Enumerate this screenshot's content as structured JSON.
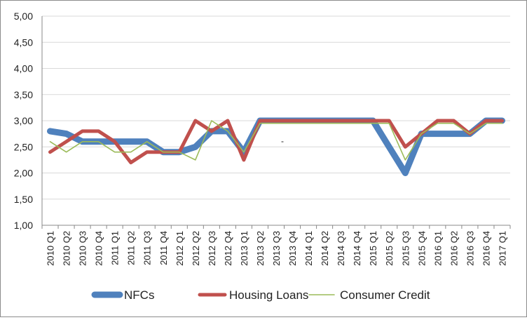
{
  "chart_data": {
    "type": "line",
    "categories": [
      "2010 Q1",
      "2010 Q2",
      "2010 Q3",
      "2010 Q4",
      "2011 Q1",
      "2011 Q2",
      "2011 Q3",
      "2011 Q4",
      "2012 Q1",
      "2012 Q2",
      "2012 Q3",
      "2012 Q4",
      "2013 Q1",
      "2013 Q2",
      "2013 Q3",
      "2013 Q4",
      "2014 Q1",
      "2014 Q2",
      "2014 Q3",
      "2014 Q4",
      "2015 Q1",
      "2015 Q2",
      "2015 Q3",
      "2015 Q4",
      "2016 Q1",
      "2016 Q2",
      "2016 Q3",
      "2016 Q4",
      "2017 Q1"
    ],
    "y_ticks": [
      "1,00",
      "1,50",
      "2,00",
      "2,50",
      "3,00",
      "3,50",
      "4,00",
      "4,50",
      "5,00"
    ],
    "ylim": [
      1.0,
      5.0
    ],
    "grid": true,
    "legend_position": "bottom",
    "annotation": "-",
    "series": [
      {
        "name": "NFCs",
        "color": "#4f81bd",
        "values": [
          2.8,
          2.75,
          2.6,
          2.6,
          2.6,
          2.6,
          2.6,
          2.4,
          2.4,
          2.5,
          2.8,
          2.8,
          2.4,
          3.0,
          3.0,
          3.0,
          3.0,
          3.0,
          3.0,
          3.0,
          3.0,
          2.5,
          2.0,
          2.75,
          2.75,
          2.75,
          2.75,
          3.0,
          3.0
        ]
      },
      {
        "name": "Housing Loans",
        "color": "#c0504d",
        "values": [
          2.4,
          2.6,
          2.8,
          2.8,
          2.6,
          2.2,
          2.4,
          2.4,
          2.4,
          3.0,
          2.8,
          3.0,
          2.25,
          3.0,
          3.0,
          3.0,
          3.0,
          3.0,
          3.0,
          3.0,
          3.0,
          3.0,
          2.5,
          2.75,
          3.0,
          3.0,
          2.75,
          3.0,
          3.0
        ]
      },
      {
        "name": "Consumer Credit",
        "color": "#9bbb59",
        "values": [
          2.6,
          2.4,
          2.6,
          2.6,
          2.4,
          2.4,
          2.6,
          2.4,
          2.4,
          2.25,
          3.0,
          2.8,
          2.4,
          2.95,
          2.95,
          2.95,
          2.95,
          2.95,
          2.95,
          2.95,
          2.95,
          2.95,
          2.25,
          2.75,
          2.95,
          2.95,
          2.75,
          2.95,
          2.95
        ]
      }
    ]
  }
}
